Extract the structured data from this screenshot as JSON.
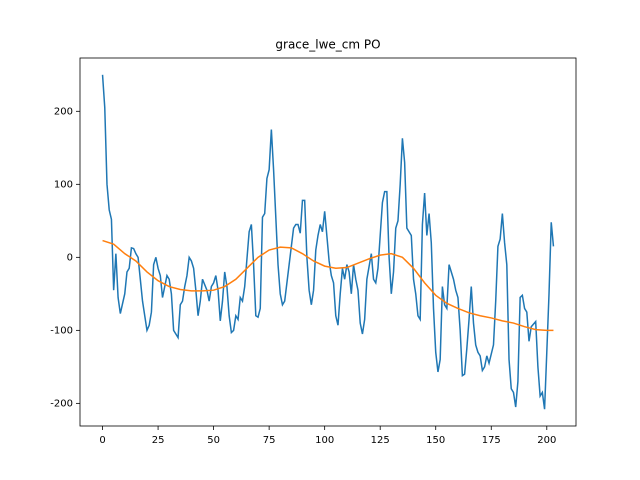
{
  "chart_data": {
    "type": "line",
    "title": "grace_lwe_cm PO",
    "xlim": [
      -10.15,
      213.15
    ],
    "ylim": [
      -231,
      273
    ],
    "xticks": [
      0,
      25,
      50,
      75,
      100,
      125,
      150,
      175,
      200
    ],
    "yticks": [
      -200,
      -100,
      0,
      100,
      200
    ],
    "series": [
      {
        "color": "#1f77b4",
        "x": [
          0,
          1,
          2,
          3,
          4,
          5,
          6,
          7,
          8,
          10,
          11,
          12,
          13,
          14,
          15,
          16,
          17,
          18,
          19,
          20,
          21,
          22,
          23,
          24,
          25,
          26,
          27,
          29,
          30,
          31,
          32,
          33,
          34,
          35,
          36,
          37,
          38,
          39,
          40,
          41,
          42,
          43,
          44,
          45,
          47,
          48,
          49,
          50,
          51,
          52,
          53,
          54,
          55,
          56,
          57,
          58,
          59,
          60,
          61,
          62,
          63,
          64,
          66,
          67,
          68,
          69,
          70,
          71,
          72,
          73,
          74,
          75,
          76,
          77,
          78,
          79,
          80,
          81,
          82,
          84,
          85,
          86,
          87,
          88,
          89,
          90,
          91,
          92,
          93,
          94,
          95,
          96,
          97,
          98,
          99,
          100,
          102,
          103,
          104,
          105,
          106,
          107,
          108,
          109,
          110,
          111,
          112,
          113,
          114,
          115,
          116,
          117,
          118,
          119,
          121,
          122,
          123,
          124,
          125,
          126,
          127,
          128,
          129,
          130,
          131,
          132,
          133,
          134,
          135,
          136,
          137,
          139,
          140,
          141,
          142,
          143,
          144,
          145,
          146,
          147,
          148,
          149,
          150,
          151,
          152,
          153,
          154,
          155,
          156,
          158,
          159,
          160,
          161,
          162,
          163,
          164,
          165,
          166,
          167,
          168,
          169,
          170,
          171,
          172,
          173,
          174,
          176,
          177,
          178,
          179,
          180,
          181,
          182,
          183,
          184,
          185,
          186,
          187,
          188,
          189,
          190,
          191,
          192,
          193,
          195,
          196,
          197,
          198,
          199,
          200,
          201,
          202,
          203
        ],
        "values": [
          250,
          205,
          100,
          65,
          52,
          -45,
          5,
          -55,
          -77,
          -50,
          -20,
          -15,
          13,
          12,
          5,
          0,
          -30,
          -60,
          -80,
          -100,
          -93,
          -75,
          -10,
          0,
          -15,
          -25,
          -55,
          -25,
          -30,
          -50,
          -100,
          -105,
          -110,
          -65,
          -60,
          -40,
          -25,
          0,
          -5,
          -15,
          -45,
          -80,
          -60,
          -30,
          -45,
          -60,
          -40,
          -35,
          -25,
          -45,
          -87,
          -60,
          -20,
          -40,
          -80,
          -103,
          -100,
          -80,
          -85,
          -55,
          -60,
          -40,
          35,
          45,
          -10,
          -80,
          -82,
          -70,
          55,
          60,
          108,
          120,
          175,
          120,
          55,
          -10,
          -50,
          -65,
          -60,
          -10,
          15,
          40,
          45,
          45,
          33,
          78,
          78,
          0,
          -45,
          -65,
          -45,
          10,
          30,
          45,
          35,
          63,
          -5,
          -25,
          -35,
          -80,
          -93,
          -50,
          -15,
          -30,
          -10,
          -20,
          -50,
          -10,
          -30,
          -45,
          -90,
          -105,
          -85,
          -30,
          5,
          -30,
          -35,
          -15,
          30,
          75,
          90,
          90,
          0,
          -50,
          -20,
          40,
          50,
          100,
          163,
          130,
          40,
          30,
          -30,
          -50,
          -80,
          -85,
          45,
          88,
          30,
          60,
          20,
          -70,
          -130,
          -157,
          -140,
          -40,
          -65,
          -70,
          -10,
          -30,
          -45,
          -55,
          -100,
          -162,
          -160,
          -125,
          -85,
          -40,
          -90,
          -120,
          -130,
          -135,
          -155,
          -150,
          -135,
          -145,
          -120,
          -60,
          15,
          25,
          60,
          20,
          -10,
          -140,
          -180,
          -185,
          -205,
          -170,
          -55,
          -52,
          -70,
          -75,
          -115,
          -95,
          -88,
          -150,
          -190,
          -185,
          -208,
          -130,
          -50,
          48,
          15
        ]
      },
      {
        "color": "#ff7f0e",
        "x": [
          0,
          5,
          10,
          15,
          20,
          25,
          30,
          35,
          40,
          45,
          50,
          55,
          60,
          65,
          70,
          75,
          80,
          85,
          90,
          95,
          100,
          105,
          110,
          115,
          120,
          125,
          130,
          135,
          140,
          145,
          150,
          155,
          160,
          165,
          170,
          175,
          180,
          185,
          190,
          195,
          200,
          203
        ],
        "values": [
          23,
          18,
          5,
          -5,
          -20,
          -32,
          -40,
          -44,
          -46,
          -46,
          -45,
          -40,
          -30,
          -15,
          0,
          10,
          14,
          13,
          5,
          -5,
          -12,
          -15,
          -14,
          -8,
          -2,
          3,
          5,
          0,
          -15,
          -35,
          -52,
          -63,
          -70,
          -76,
          -80,
          -83,
          -87,
          -90,
          -95,
          -99,
          -100,
          -100
        ]
      }
    ]
  }
}
